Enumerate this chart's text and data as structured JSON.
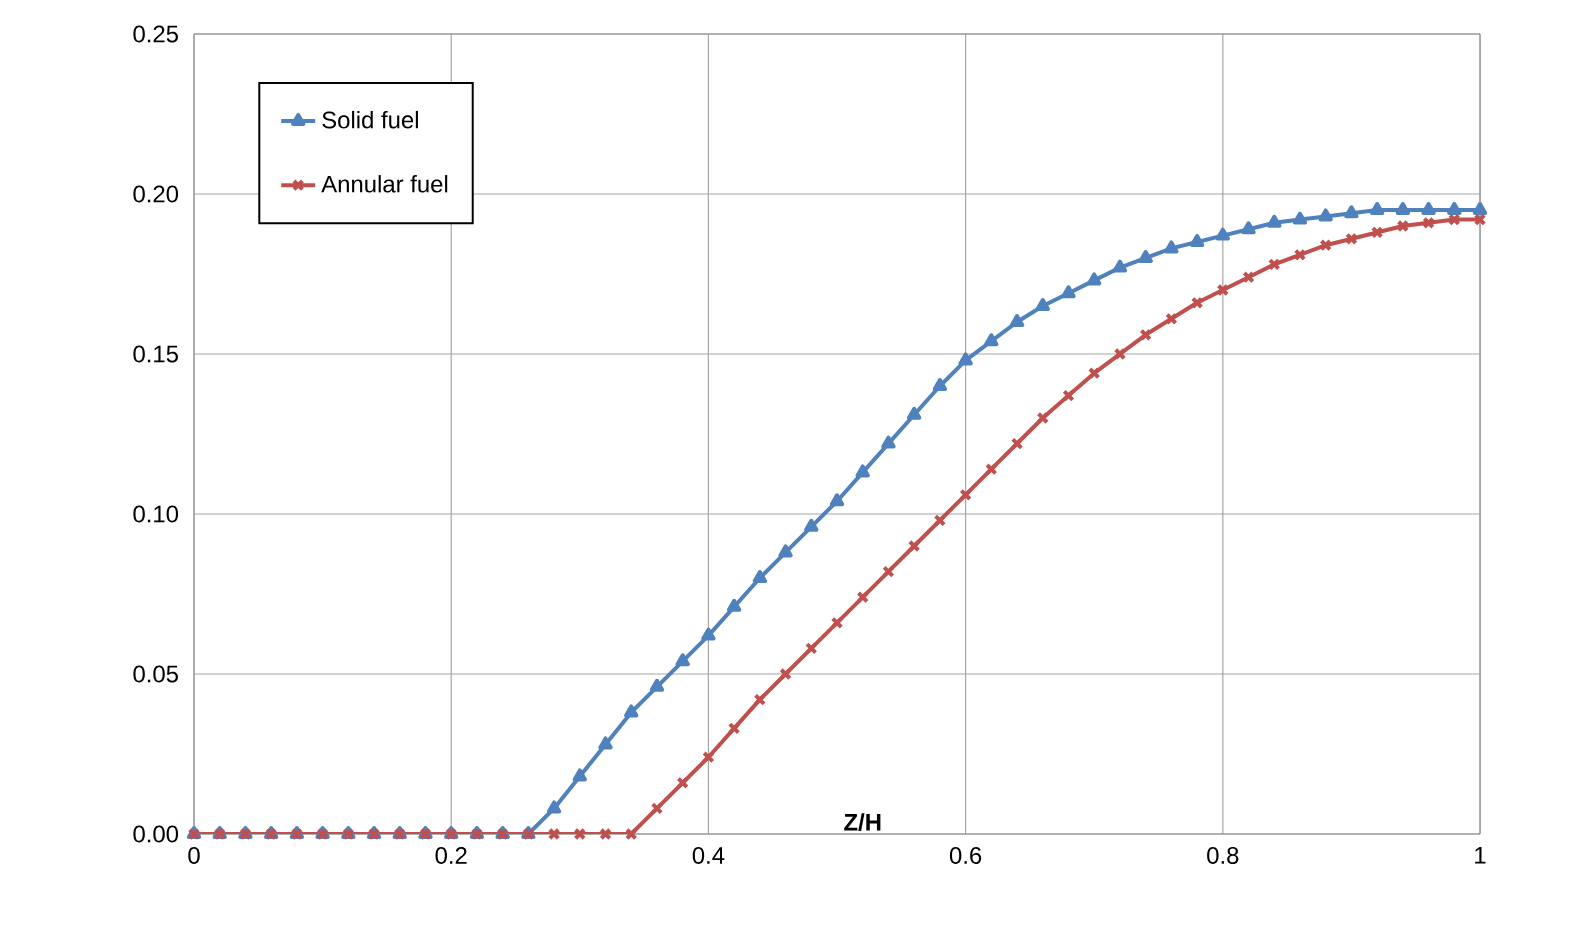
{
  "chart_data": {
    "type": "line",
    "xlabel": "Z/H",
    "x": [
      0,
      0.02,
      0.04,
      0.06,
      0.08,
      0.1,
      0.12,
      0.14,
      0.16,
      0.18,
      0.2,
      0.22,
      0.24,
      0.26,
      0.28,
      0.3,
      0.32,
      0.34,
      0.36,
      0.38,
      0.4,
      0.42,
      0.44,
      0.46,
      0.48,
      0.5,
      0.52,
      0.54,
      0.56,
      0.58,
      0.6,
      0.62,
      0.64,
      0.66,
      0.68,
      0.7,
      0.72,
      0.74,
      0.76,
      0.78,
      0.8,
      0.82,
      0.84,
      0.86,
      0.88,
      0.9,
      0.92,
      0.94,
      0.96,
      0.98,
      1
    ],
    "series": [
      {
        "name": "Solid fuel",
        "color": "#4f81bd",
        "marker": "triangle",
        "values": [
          0,
          0,
          0,
          0,
          0,
          0,
          0,
          0,
          0,
          0,
          0,
          0,
          0,
          0,
          0.008,
          0.018,
          0.028,
          0.038,
          0.046,
          0.054,
          0.062,
          0.071,
          0.08,
          0.088,
          0.096,
          0.104,
          0.113,
          0.122,
          0.131,
          0.14,
          0.148,
          0.154,
          0.16,
          0.165,
          0.169,
          0.173,
          0.177,
          0.18,
          0.183,
          0.185,
          0.187,
          0.189,
          0.191,
          0.192,
          0.193,
          0.194,
          0.195,
          0.195,
          0.195,
          0.195,
          0.195
        ]
      },
      {
        "name": "Annular fuel",
        "color": "#c0504d",
        "marker": "cross",
        "values": [
          0,
          0,
          0,
          0,
          0,
          0,
          0,
          0,
          0,
          0,
          0,
          0,
          0,
          0,
          0,
          0,
          0,
          0,
          0.008,
          0.016,
          0.024,
          0.033,
          0.042,
          0.05,
          0.058,
          0.066,
          0.074,
          0.082,
          0.09,
          0.098,
          0.106,
          0.114,
          0.122,
          0.13,
          0.137,
          0.144,
          0.15,
          0.156,
          0.161,
          0.166,
          0.17,
          0.174,
          0.178,
          0.181,
          0.184,
          0.186,
          0.188,
          0.19,
          0.191,
          0.192,
          0.192
        ]
      }
    ],
    "xlim": [
      0,
      1
    ],
    "xticks": [
      0,
      0.2,
      0.4,
      0.6,
      0.8,
      1
    ],
    "ylim": [
      0,
      0.25
    ],
    "yticks": [
      {
        "value": 0,
        "label": "0.00"
      },
      {
        "value": 0.05,
        "label": "0.05"
      },
      {
        "value": 0.1,
        "label": "0.10"
      },
      {
        "value": 0.15,
        "label": "0.15"
      },
      {
        "value": 0.2,
        "label": "0.20"
      },
      {
        "value": 0.25,
        "label": "0.25"
      }
    ],
    "grid": true,
    "legend": "top left",
    "line_style": "solid"
  }
}
